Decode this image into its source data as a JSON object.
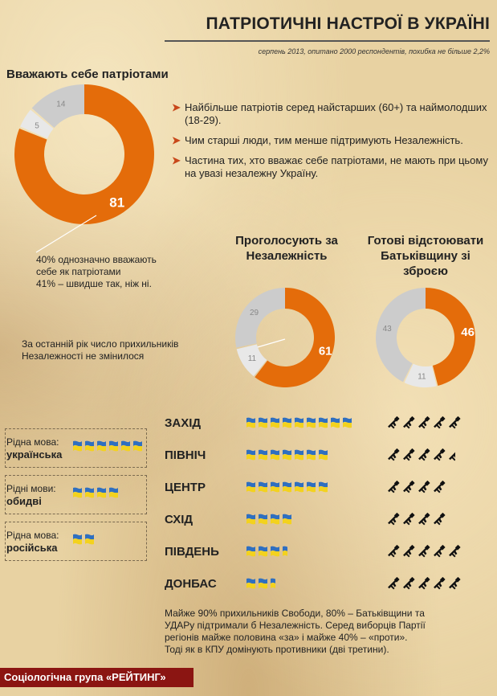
{
  "header": {
    "title": "ПАТРІОТИЧНІ НАСТРОЇ В УКРАЇНІ",
    "subtitle": "серпень 2013,  опитано 2000  респондентів, похибка не більше 2,2%"
  },
  "section1": {
    "title": "Вважають себе патріотами",
    "bullets": [
      "Найбільше патріотів серед найстарших (60+) та наймолодших (18-29).",
      "Чим старші люди, тим менше підтримують Незалежність.",
      "Частина тих, хто вважає себе патріотами, не мають при цьому на увазі незалежну Україну."
    ],
    "note_lines": [
      "40% однозначно вважають",
      "себе як патріотами",
      "41% – швидше так, ніж ні."
    ]
  },
  "section2": {
    "independence_title_lines": [
      "Проголосують за",
      "Незалежність"
    ],
    "weapon_title_lines": [
      "Готові відстоювати",
      "Батьківщину зі",
      "зброєю"
    ],
    "note_lines": [
      "За останній рік число прихильників",
      "Незалежності не змінилося"
    ]
  },
  "chart_data": [
    {
      "type": "pie",
      "values": [
        81,
        5,
        14
      ],
      "colors": [
        "#e46c0a",
        "#e8e8e8",
        "#cccccc"
      ]
    },
    {
      "type": "pie",
      "values": [
        61,
        11,
        29
      ],
      "colors": [
        "#e46c0a",
        "#e8e8e8",
        "#cccccc"
      ]
    },
    {
      "type": "pie",
      "values": [
        46,
        11,
        43
      ],
      "colors": [
        "#e46c0a",
        "#e8e8e8",
        "#cccccc"
      ]
    }
  ],
  "regions": [
    {
      "name": "ЗАХІД",
      "flags": 9,
      "guns": 5
    },
    {
      "name": "ПІВНІЧ",
      "flags": 7,
      "guns": 4.5
    },
    {
      "name": "ЦЕНТР",
      "flags": 7,
      "guns": 4
    },
    {
      "name": "СХІД",
      "flags": 4,
      "guns": 4
    },
    {
      "name": "ПІВДЕНЬ",
      "flags": 3.5,
      "guns": 5
    },
    {
      "name": "ДОНБАС",
      "flags": 2.5,
      "guns": 5
    }
  ],
  "languages": [
    {
      "label": "Рідна мова:",
      "value": "українська",
      "flags": 6
    },
    {
      "label": "Рідні мови:",
      "value": "обидві",
      "flags": 4
    },
    {
      "label": "Рідна мова:",
      "value": "російська",
      "flags": 2
    }
  ],
  "summary": [
    "Майже 90% прихильників Свободи, 80% – Батьківщини та",
    "УДАРу підтримали б Незалежність. Серед виборців Партії",
    "регіонів  майже половина «за» і майже 40% – «проти».",
    "Тоді як в КПУ домінують противники (дві третини)."
  ],
  "footer": "Соціологічна група «РЕЙТИНГ»",
  "colors": {
    "orange": "#e46c0a",
    "flag_blue": "#2f6fc0",
    "flag_yellow": "#f3d21e",
    "footer_bg": "#8b1512"
  }
}
